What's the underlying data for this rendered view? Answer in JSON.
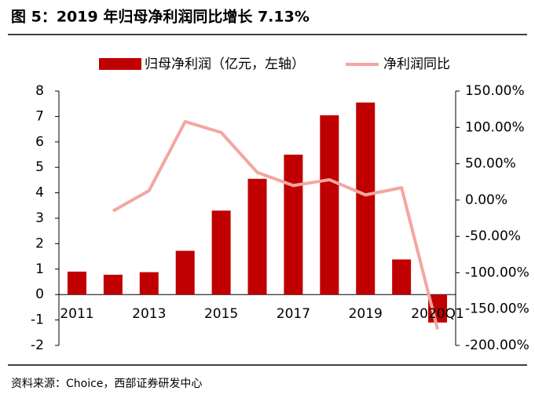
{
  "chart_data": {
    "type": "bar-line",
    "title": "图 5：2019 年归母净利润同比增长 7.13%",
    "source": "资料来源：Choice，西部证券研发中心",
    "categories": [
      "2011",
      null,
      "2013",
      null,
      "2015",
      null,
      "2017",
      null,
      "2019",
      null,
      "2020Q1"
    ],
    "series": [
      {
        "name": "归母净利润（亿元，左轴）",
        "type": "bar",
        "color": "#c00000",
        "values": [
          0.9,
          0.78,
          0.88,
          1.72,
          3.3,
          4.55,
          5.5,
          7.05,
          7.55,
          1.38,
          -1.1
        ]
      },
      {
        "name": "净利润同比",
        "type": "line",
        "axis": "y2",
        "color": "#f4a6a0",
        "values": [
          null,
          -15,
          13,
          108,
          93,
          38,
          20,
          28,
          7.13,
          17,
          -178
        ]
      }
    ],
    "ylim": [
      -2,
      8
    ],
    "yticks": [
      -2,
      -1,
      0,
      1,
      2,
      3,
      4,
      5,
      6,
      7,
      8
    ],
    "y2lim": [
      -200,
      150
    ],
    "y2ticks": [
      {
        "value": -200,
        "label": "-200.00%"
      },
      {
        "value": -150,
        "label": "-150.00%"
      },
      {
        "value": -100,
        "label": "-100.00%"
      },
      {
        "value": -50,
        "label": "-50.00%"
      },
      {
        "value": 0,
        "label": "0.00%"
      },
      {
        "value": 50,
        "label": "50.00%"
      },
      {
        "value": 100,
        "label": "100.00%"
      },
      {
        "value": 150,
        "label": "150.00%"
      }
    ]
  }
}
